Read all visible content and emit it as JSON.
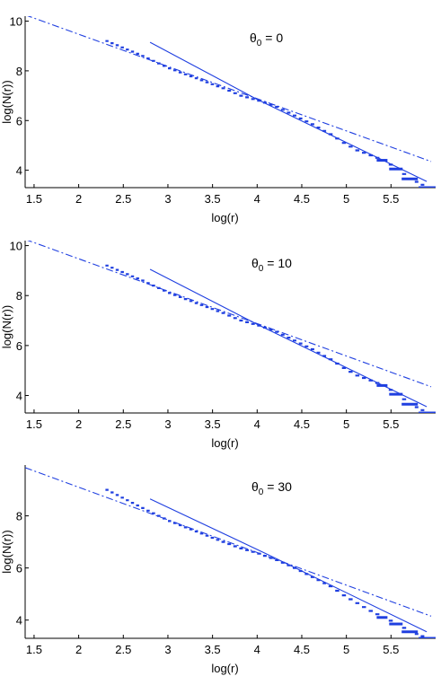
{
  "colors": {
    "series": "#1f3fe0",
    "axis": "#000000",
    "background": "#ffffff"
  },
  "chart_data": [
    {
      "type": "line",
      "annotation": {
        "symbol": "θ",
        "subscript": "0",
        "text": " = 0"
      },
      "xlabel": "log(r)",
      "ylabel": "log(N(r))",
      "xlim": [
        1.4,
        6.0
      ],
      "ylim": [
        3.3,
        10.2
      ],
      "xticks": [
        1.5,
        2,
        2.5,
        3,
        3.5,
        4,
        4.5,
        5,
        5.5
      ],
      "xtick_labels": [
        "1.5",
        "2",
        "2.5",
        "3",
        "3.5",
        "4",
        "4.5",
        "5",
        "5.5"
      ],
      "yticks": [
        4,
        6,
        8,
        10
      ],
      "ytick_labels": [
        "4",
        "6",
        "8",
        "10"
      ],
      "grid": false,
      "series": [
        {
          "style": "solid",
          "x": [
            2.8,
            4.0,
            5.9
          ],
          "y": [
            9.15,
            6.85,
            3.55
          ]
        },
        {
          "style": "dashdot",
          "x": [
            1.4,
            5.95
          ],
          "y": [
            10.25,
            4.35
          ]
        },
        {
          "style": "steps",
          "x": [
            2.3,
            2.7,
            3.0,
            3.3,
            3.6,
            3.8,
            4.0,
            4.2,
            4.4,
            4.6,
            4.8,
            4.95,
            5.1,
            5.25,
            5.4,
            5.55,
            5.7,
            5.9
          ],
          "y": [
            9.2,
            8.6,
            8.1,
            7.7,
            7.3,
            7.0,
            6.8,
            6.55,
            6.2,
            5.85,
            5.45,
            5.1,
            4.8,
            4.6,
            4.4,
            4.05,
            3.65,
            3.3
          ]
        }
      ]
    },
    {
      "type": "line",
      "annotation": {
        "symbol": "θ",
        "subscript": "0",
        "text": " = 10"
      },
      "xlabel": "log(r)",
      "ylabel": "log(N(r))",
      "xlim": [
        1.4,
        6.0
      ],
      "ylim": [
        3.3,
        10.2
      ],
      "xticks": [
        1.5,
        2,
        2.5,
        3,
        3.5,
        4,
        4.5,
        5,
        5.5
      ],
      "xtick_labels": [
        "1.5",
        "2",
        "2.5",
        "3",
        "3.5",
        "4",
        "4.5",
        "5",
        "5.5"
      ],
      "yticks": [
        4,
        6,
        8,
        10
      ],
      "ytick_labels": [
        "4",
        "6",
        "8",
        "10"
      ],
      "grid": false,
      "series": [
        {
          "style": "solid",
          "x": [
            2.8,
            4.0,
            5.9
          ],
          "y": [
            9.05,
            6.85,
            3.55
          ]
        },
        {
          "style": "dashdot",
          "x": [
            1.4,
            5.95
          ],
          "y": [
            10.25,
            4.35
          ]
        },
        {
          "style": "steps",
          "x": [
            2.3,
            2.7,
            3.0,
            3.3,
            3.6,
            3.8,
            4.0,
            4.2,
            4.4,
            4.6,
            4.8,
            4.95,
            5.1,
            5.25,
            5.4,
            5.55,
            5.7,
            5.9
          ],
          "y": [
            9.2,
            8.6,
            8.1,
            7.7,
            7.3,
            7.0,
            6.8,
            6.55,
            6.2,
            5.85,
            5.45,
            5.1,
            4.8,
            4.6,
            4.4,
            4.05,
            3.65,
            3.3
          ]
        }
      ]
    },
    {
      "type": "line",
      "annotation": {
        "symbol": "θ",
        "subscript": "0",
        "text": " = 30"
      },
      "xlabel": "log(r)",
      "ylabel": "log(N(r))",
      "xlim": [
        1.4,
        6.0
      ],
      "ylim": [
        3.3,
        9.95
      ],
      "xticks": [
        1.5,
        2,
        2.5,
        3,
        3.5,
        4,
        4.5,
        5,
        5.5
      ],
      "xtick_labels": [
        "1.5",
        "2",
        "2.5",
        "3",
        "3.5",
        "4",
        "4.5",
        "5",
        "5.5"
      ],
      "yticks": [
        4,
        6,
        8
      ],
      "ytick_labels": [
        "4",
        "6",
        "8"
      ],
      "grid": false,
      "series": [
        {
          "style": "solid",
          "x": [
            2.8,
            4.1,
            5.9
          ],
          "y": [
            8.65,
            6.55,
            3.55
          ]
        },
        {
          "style": "dashdot",
          "x": [
            1.4,
            5.95
          ],
          "y": [
            9.85,
            4.15
          ]
        },
        {
          "style": "steps",
          "x": [
            2.3,
            2.7,
            3.0,
            3.3,
            3.6,
            3.8,
            4.0,
            4.2,
            4.4,
            4.6,
            4.8,
            4.95,
            5.1,
            5.25,
            5.4,
            5.55,
            5.7,
            5.9
          ],
          "y": [
            9.0,
            8.3,
            7.8,
            7.4,
            7.0,
            6.75,
            6.55,
            6.3,
            6.0,
            5.65,
            5.3,
            4.95,
            4.65,
            4.35,
            4.1,
            3.85,
            3.55,
            3.3
          ]
        }
      ]
    }
  ]
}
